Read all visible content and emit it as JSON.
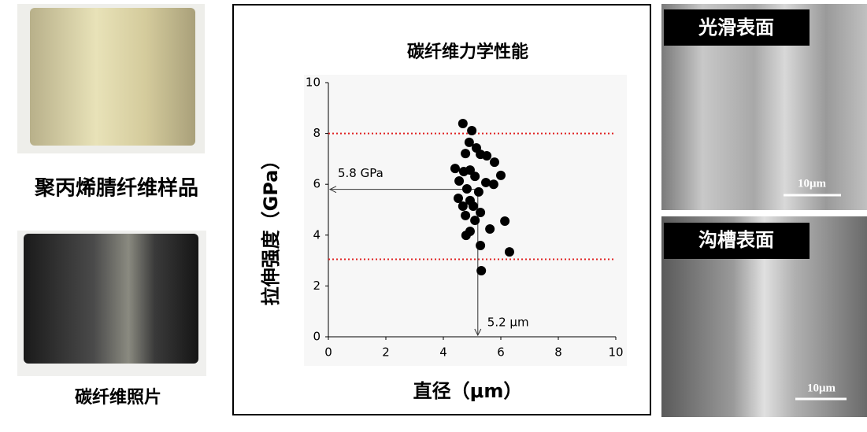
{
  "chart_data": {
    "type": "scatter",
    "title": "碳纤维力学性能",
    "x_label": "直径（μm）",
    "y_label": "拉伸强度（GPa）",
    "series": [
      {
        "color": "#000000",
        "x": [
          4.68,
          4.99,
          4.9,
          5.15,
          4.77,
          5.29,
          5.51,
          5.78,
          4.41,
          4.71,
          4.93,
          4.55,
          5.1,
          6.0,
          5.48,
          5.75,
          4.82,
          5.23,
          4.52,
          4.93,
          4.68,
          5.04,
          5.29,
          4.77,
          5.1,
          6.14,
          5.62,
          4.93,
          4.79,
          5.29,
          6.3,
          5.32
        ],
        "y": [
          8.39,
          8.11,
          7.65,
          7.43,
          7.21,
          7.18,
          7.12,
          6.87,
          6.62,
          6.5,
          6.56,
          6.13,
          6.31,
          6.35,
          6.07,
          6.0,
          5.82,
          5.7,
          5.45,
          5.36,
          5.14,
          5.14,
          4.89,
          4.77,
          4.58,
          4.55,
          4.24,
          4.15,
          3.99,
          3.59,
          3.34,
          2.6
        ]
      }
    ],
    "xlim": [
      0,
      10
    ],
    "xticks": [
      0,
      2,
      4,
      6,
      8,
      10
    ],
    "ylim": [
      0,
      10
    ],
    "yticks": [
      0,
      2,
      4,
      6,
      8,
      10
    ],
    "reference_lines": {
      "color": "#e02020",
      "values": [
        8,
        3.05
      ]
    },
    "marker": {
      "x": 5.2,
      "y": 5.8,
      "x_label": "5.2 μm",
      "y_label": "5.8 GPa"
    }
  },
  "photos": {
    "precursor_label": "聚丙烯腈纤维样品",
    "carbon_label": "碳纤维照片",
    "smooth_label": "光滑表面",
    "groove_label": "沟槽表面",
    "smooth_scale": "10μm",
    "groove_scale": "10μm"
  }
}
